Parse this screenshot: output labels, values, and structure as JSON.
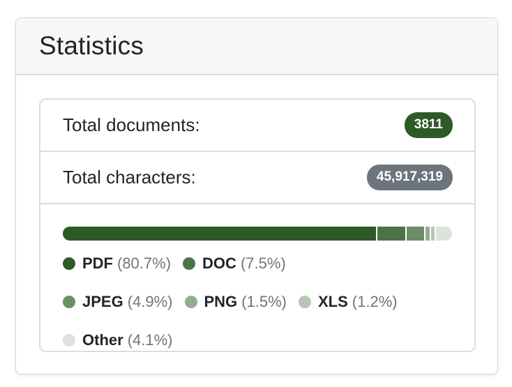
{
  "card": {
    "title": "Statistics"
  },
  "stats": {
    "total_documents_label": "Total documents:",
    "total_documents_value": "3811",
    "total_characters_label": "Total characters:",
    "total_characters_value": "45,917,319"
  },
  "colors": {
    "documents_badge": "#2d5a27",
    "characters_badge": "#6c757d"
  },
  "chart_data": {
    "type": "bar",
    "categories": [
      "PDF",
      "DOC",
      "JPEG",
      "PNG",
      "XLS",
      "Other"
    ],
    "values": [
      80.7,
      7.5,
      4.9,
      1.5,
      1.2,
      4.1
    ],
    "value_unit": "%",
    "colors": [
      "#2d5a27",
      "#4a7445",
      "#6b8e66",
      "#94ad90",
      "#b5c7b2",
      "#dbe3da"
    ],
    "legend": [
      {
        "name": "PDF",
        "pct": "(80.7%)"
      },
      {
        "name": "DOC",
        "pct": "(7.5%)"
      },
      {
        "name": "JPEG",
        "pct": "(4.9%)"
      },
      {
        "name": "PNG",
        "pct": "(1.5%)"
      },
      {
        "name": "XLS",
        "pct": "(1.2%)"
      },
      {
        "name": "Other",
        "pct": "(4.1%)"
      }
    ]
  }
}
